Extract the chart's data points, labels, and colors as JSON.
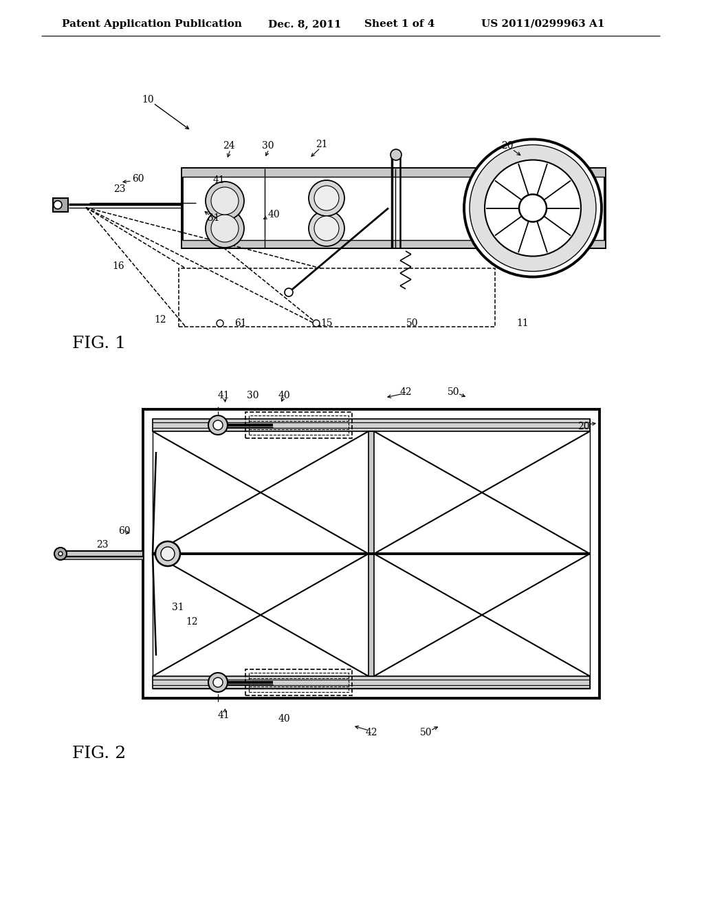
{
  "bg_color": "#ffffff",
  "line_color": "#000000",
  "header_text": "Patent Application Publication",
  "header_date": "Dec. 8, 2011",
  "header_sheet": "Sheet 1 of 4",
  "header_patent": "US 2011/0299963 A1",
  "fig1_label": "FIG. 1",
  "fig2_label": "FIG. 2",
  "font_size_header": 11,
  "font_size_label": 16,
  "font_size_ref": 10
}
